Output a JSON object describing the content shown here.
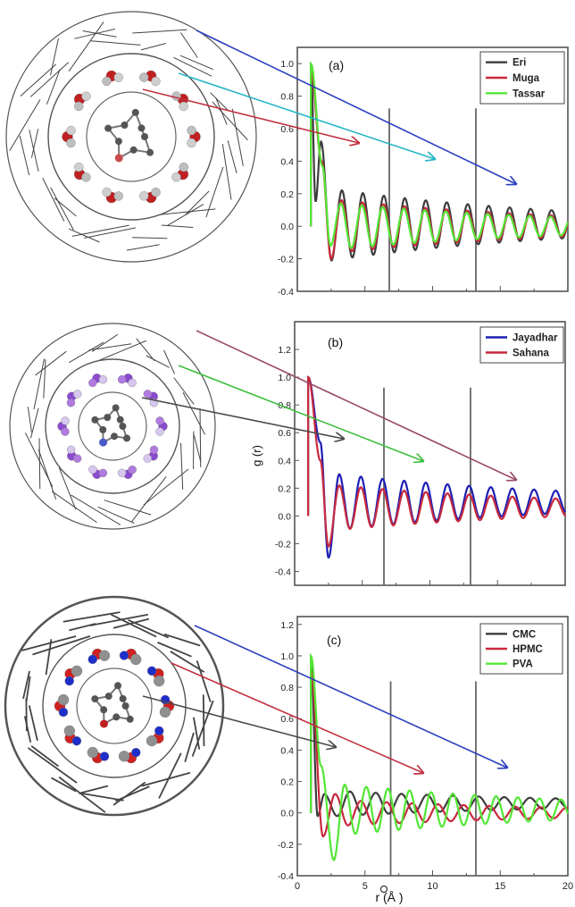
{
  "figure": {
    "shared_xlabel": "r (Å )",
    "shared_ylabel": "g (r)",
    "colors": {
      "dark_gray": "#3d3d3d",
      "crimson": "#c8283c",
      "lime": "#52e635",
      "navy_blue": "#1f1fb4",
      "arrow_blue": "#2b3fbf",
      "arrow_cyan": "#25b6c8",
      "arrow_red": "#c23040",
      "arrow_mauve": "#9a4a6a",
      "arrow_green": "#3cbf3c",
      "arrow_gray": "#4a4a4a"
    }
  },
  "chart_data": [
    {
      "type": "line",
      "panel_label": "(a)",
      "x": [
        0.8,
        20
      ],
      "xlim": [
        0,
        20
      ],
      "ylim": [
        -0.4,
        1.1
      ],
      "yticks": [
        -0.4,
        -0.2,
        0.0,
        0.2,
        0.4,
        0.6,
        0.8,
        1.0
      ],
      "vlines": [
        6.8,
        13.2
      ],
      "legend_position": "top-right",
      "series": [
        {
          "name": "Eri",
          "color": "#3d3d3d",
          "peak_r": 1.0,
          "peak_g": 1.0,
          "first_max_r": 1.75,
          "first_max_g": 0.52,
          "first_min_r": 1.35,
          "first_min_g": 0.15,
          "oscillation_period": 1.55,
          "oscillation_amplitude": 0.22,
          "baseline": 0.01
        },
        {
          "name": "Muga",
          "color": "#c8283c",
          "peak_r": 1.0,
          "peak_g": 0.95,
          "first_max_r": 1.8,
          "first_max_g": 0.4,
          "first_min_r": 2.5,
          "first_min_g": -0.2,
          "oscillation_period": 1.55,
          "oscillation_amplitude": 0.16,
          "baseline": 0.0
        },
        {
          "name": "Tassar",
          "color": "#52e635",
          "peak_r": 1.0,
          "peak_g": 1.0,
          "first_max_r": 1.85,
          "first_max_g": 0.37,
          "first_min_r": 2.45,
          "first_min_g": -0.12,
          "oscillation_period": 1.55,
          "oscillation_amplitude": 0.14,
          "baseline": 0.0
        }
      ]
    },
    {
      "type": "line",
      "panel_label": "(b)",
      "xlim": [
        0,
        20
      ],
      "ylim": [
        -0.5,
        1.4
      ],
      "yticks": [
        -0.4,
        -0.2,
        0.0,
        0.2,
        0.4,
        0.6,
        0.8,
        1.0,
        1.2
      ],
      "vlines": [
        6.6,
        13.0
      ],
      "legend_position": "top-right",
      "series": [
        {
          "name": "Jayadhar",
          "color": "#1f1fb4",
          "peak_r": 1.0,
          "peak_g": 1.0,
          "first_max_r": 1.9,
          "first_max_g": 0.53,
          "first_min_r": 2.5,
          "first_min_g": -0.3,
          "oscillation_period": 1.6,
          "oscillation_amplitude": 0.2,
          "baseline": 0.1
        },
        {
          "name": "Sahana",
          "color": "#c8283c",
          "peak_r": 1.0,
          "peak_g": 1.0,
          "first_max_r": 1.9,
          "first_max_g": 0.4,
          "first_min_r": 2.5,
          "first_min_g": -0.22,
          "oscillation_period": 1.6,
          "oscillation_amplitude": 0.16,
          "baseline": 0.06
        }
      ]
    },
    {
      "type": "line",
      "panel_label": "(c)",
      "xlim": [
        0,
        20
      ],
      "ylim": [
        -0.4,
        1.25
      ],
      "xticks": [
        0,
        5,
        10,
        15,
        20
      ],
      "yticks": [
        -0.4,
        -0.2,
        0.0,
        0.2,
        0.4,
        0.6,
        0.8,
        1.0,
        1.2
      ],
      "vlines": [
        6.9,
        13.2
      ],
      "legend_position": "top-right",
      "series": [
        {
          "name": "CMC",
          "color": "#3d3d3d",
          "peak_r": 1.0,
          "peak_g": 1.0,
          "first_max_r": 2.0,
          "first_max_g": 0.12,
          "first_min_r": 1.5,
          "first_min_g": -0.02,
          "oscillation_period": 1.9,
          "oscillation_amplitude": 0.08,
          "baseline": 0.06
        },
        {
          "name": "HPMC",
          "color": "#c8283c",
          "peak_r": 1.0,
          "peak_g": 0.9,
          "first_max_r": 2.8,
          "first_max_g": 0.12,
          "first_min_r": 1.9,
          "first_min_g": -0.15,
          "oscillation_period": 1.9,
          "oscillation_amplitude": 0.08,
          "baseline": 0.0
        },
        {
          "name": "PVA",
          "color": "#52e635",
          "peak_r": 1.0,
          "peak_g": 1.0,
          "first_max_r": 1.75,
          "first_max_g": 0.3,
          "first_min_r": 2.7,
          "first_min_g": -0.3,
          "oscillation_period": 1.6,
          "oscillation_amplitude": 0.16,
          "baseline": 0.02
        }
      ]
    }
  ]
}
